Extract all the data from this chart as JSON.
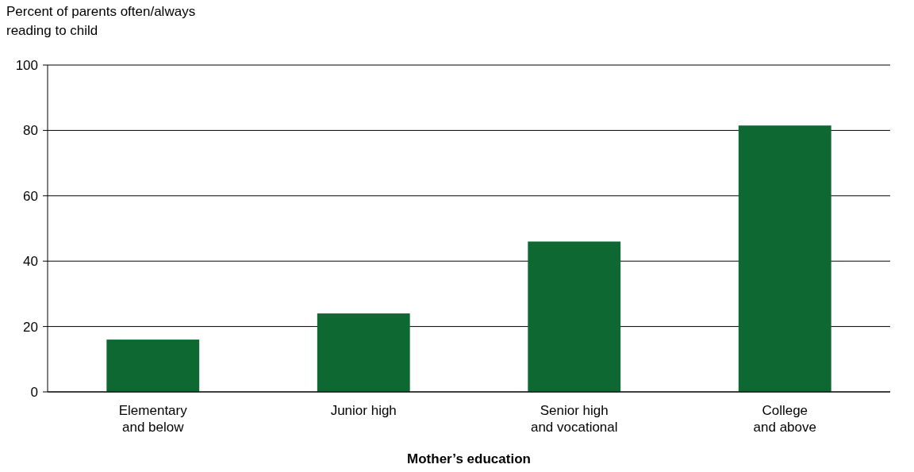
{
  "chart_data": {
    "type": "bar",
    "ylabel": "Percent of parents often/always\nreading to child",
    "xlabel": "Mother’s education",
    "categories": [
      "Elementary\nand below",
      "Junior high",
      "Senior high\nand vocational",
      "College\nand above"
    ],
    "values": [
      16,
      24,
      46,
      81.5
    ],
    "color": "#0e6832",
    "ylim": [
      0,
      100
    ],
    "yticks": [
      0,
      20,
      40,
      60,
      80,
      100
    ],
    "grid": "y"
  }
}
